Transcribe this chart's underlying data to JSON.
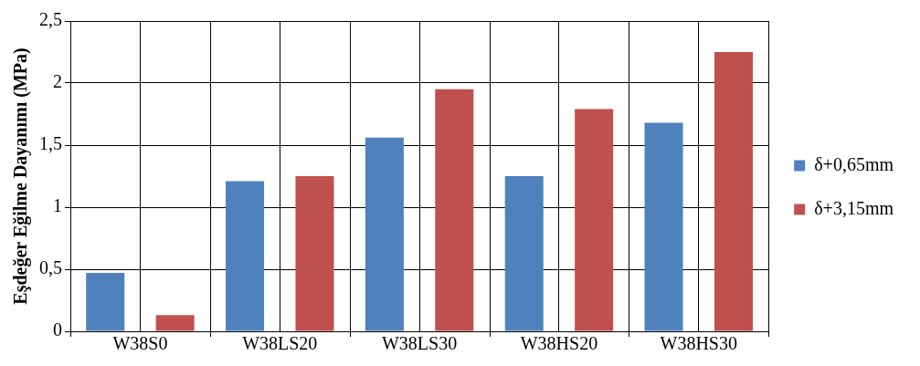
{
  "chart_data": {
    "type": "bar",
    "ylabel": "Eşdeğer Eğilme Dayanımı (MPa)",
    "categories": [
      "W38S0",
      "W38LS20",
      "W38LS30",
      "W38HS20",
      "W38HS30"
    ],
    "series": [
      {
        "name": "δ+0,65mm",
        "color": "#4f81bd",
        "values": [
          0.47,
          1.21,
          1.56,
          1.25,
          1.68
        ]
      },
      {
        "name": "δ+3,15mm",
        "color": "#c0504d",
        "values": [
          0.13,
          1.25,
          1.95,
          1.79,
          2.25
        ]
      }
    ],
    "ylim": [
      0,
      2.5
    ],
    "yticks": [
      {
        "value": 0,
        "label": "0"
      },
      {
        "value": 0.5,
        "label": "0,5"
      },
      {
        "value": 1,
        "label": "1"
      },
      {
        "value": 1.5,
        "label": "1,5"
      },
      {
        "value": 2,
        "label": "2"
      },
      {
        "value": 2.5,
        "label": "2,5"
      }
    ],
    "grid": true,
    "legend": "right"
  }
}
